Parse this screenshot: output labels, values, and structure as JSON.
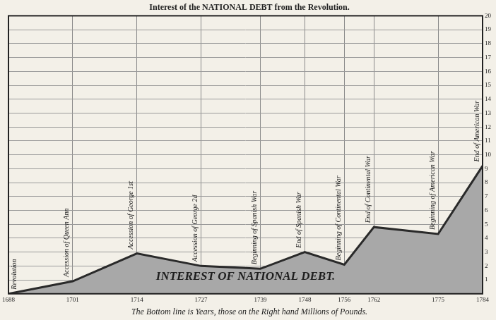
{
  "chart_data": {
    "type": "area",
    "title": "Interest of the NATIONAL DEBT from the Revolution.",
    "subtitle": "The Bottom line is Years, those on the Right hand Millions of Pounds.",
    "area_label": "INTEREST OF NATIONAL DEBT.",
    "x": [
      1688,
      1701,
      1714,
      1727,
      1739,
      1748,
      1756,
      1762,
      1775,
      1784
    ],
    "values": [
      0,
      0.9,
      2.9,
      2.0,
      1.8,
      3.0,
      2.1,
      4.8,
      4.3,
      9.2
    ],
    "color": "#a8a8a8",
    "xlim": [
      1688,
      1784
    ],
    "xticks": [
      1688,
      1701,
      1714,
      1727,
      1739,
      1748,
      1756,
      1762,
      1775,
      1784
    ],
    "ylim": [
      0,
      20
    ],
    "yticks": [
      1,
      2,
      3,
      4,
      5,
      6,
      7,
      8,
      9,
      10,
      11,
      12,
      13,
      14,
      15,
      16,
      17,
      18,
      19,
      20
    ],
    "grid": true,
    "annotations": [
      {
        "x": 1688,
        "text": "Revolution"
      },
      {
        "x": 1701,
        "text": "Accession of Queen Ann"
      },
      {
        "x": 1714,
        "text": "Accession of George 1st"
      },
      {
        "x": 1727,
        "text": "Accession of George 2d"
      },
      {
        "x": 1739,
        "text": "Beginning of Spanish War"
      },
      {
        "x": 1748,
        "text": "End of Spanish War"
      },
      {
        "x": 1756,
        "text": "Beginning of Continental War"
      },
      {
        "x": 1762,
        "text": "End of Continental War"
      },
      {
        "x": 1775,
        "text": "Beginning of American War"
      },
      {
        "x": 1784,
        "text": "End of American War"
      }
    ]
  }
}
